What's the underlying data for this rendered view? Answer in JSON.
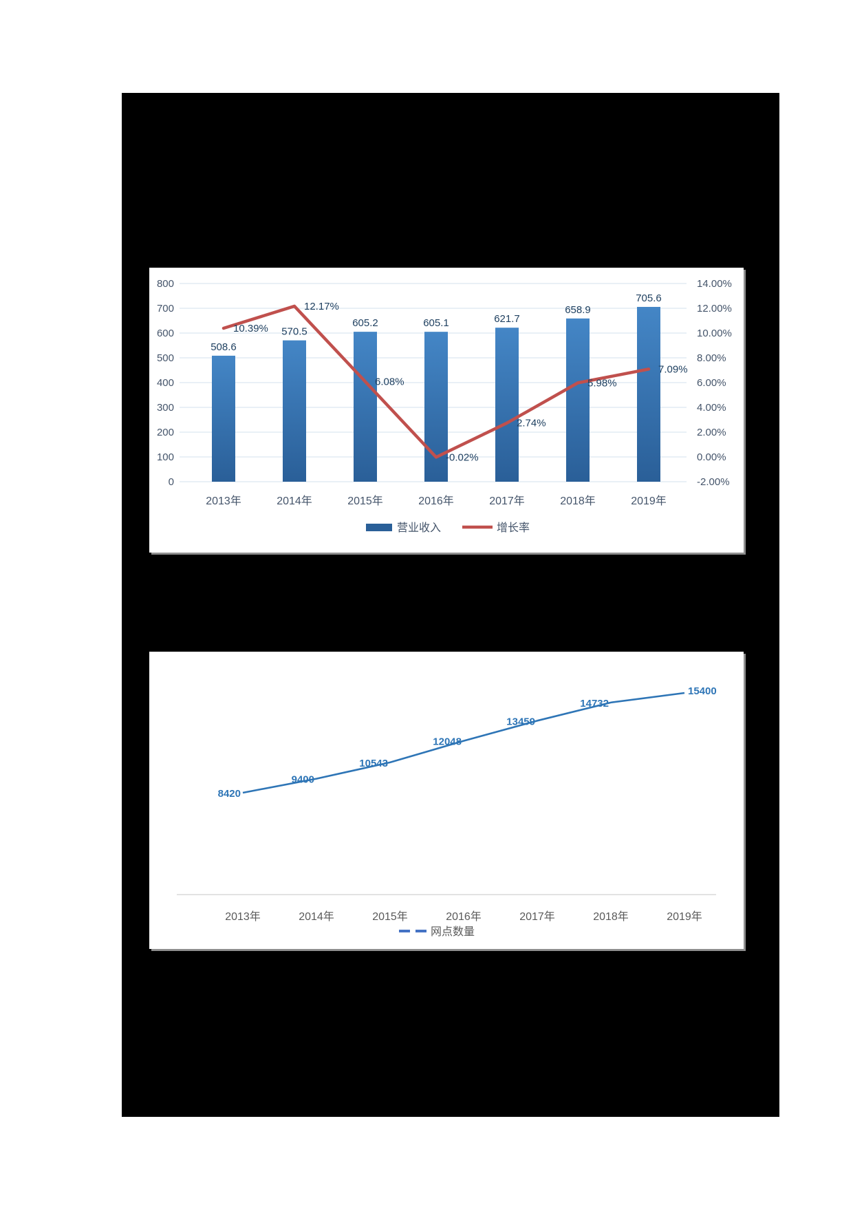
{
  "page": {
    "background_color": "#ffffff",
    "canvas_color": "#000000"
  },
  "chart_data": [
    {
      "type": "bar",
      "title": "",
      "categories": [
        "2013年",
        "2014年",
        "2015年",
        "2016年",
        "2017年",
        "2018年",
        "2019年"
      ],
      "series": [
        {
          "name": "营业收入",
          "type": "bar",
          "values": [
            508.6,
            570.5,
            605.2,
            605.1,
            621.7,
            658.9,
            705.6
          ],
          "labels": [
            "508.6",
            "570.5",
            "605.2",
            "605.1",
            "621.7",
            "658.9",
            "705.6"
          ],
          "color": "#3474b6"
        },
        {
          "name": "增长率",
          "type": "line",
          "values": [
            10.39,
            12.17,
            6.08,
            -0.02,
            2.74,
            5.98,
            7.09
          ],
          "labels": [
            "10.39%",
            "12.17%",
            "6.08%",
            "-0.02%",
            "2.74%",
            "5.98%",
            "7.09%"
          ],
          "color": "#c0504d"
        }
      ],
      "left_axis": {
        "min": 0,
        "max": 800,
        "step": 100,
        "ticks": [
          "800",
          "700",
          "600",
          "500",
          "400",
          "300",
          "200",
          "100",
          "0"
        ]
      },
      "right_axis": {
        "min": -2,
        "max": 14,
        "step": 2,
        "ticks": [
          "14.00%",
          "12.00%",
          "10.00%",
          "8.00%",
          "6.00%",
          "4.00%",
          "2.00%",
          "0.00%",
          "-2.00%"
        ]
      },
      "grid": true,
      "legend": [
        "营业收入",
        "增长率"
      ],
      "legend_position": "bottom",
      "colors": {
        "grid": "#dce6f1",
        "axis_label": "#44546a",
        "value_label": "#1f4060",
        "bar_top": "#4486c6",
        "bar_bottom": "#2a5f98",
        "line": "#c0504d"
      }
    },
    {
      "type": "line",
      "title": "",
      "categories": [
        "2013年",
        "2014年",
        "2015年",
        "2016年",
        "2017年",
        "2018年",
        "2019年"
      ],
      "series": [
        {
          "name": "网点数量",
          "type": "line",
          "values": [
            8420,
            9400,
            10543,
            12048,
            13459,
            14732,
            15400
          ],
          "labels": [
            "8420",
            "9400",
            "10543",
            "12048",
            "13459",
            "14732",
            "15400"
          ],
          "color": "#2e75b6"
        }
      ],
      "ylim": [
        8000,
        16000
      ],
      "grid": false,
      "legend": [
        "网点数量"
      ],
      "legend_position": "bottom",
      "colors": {
        "line": "#2e75b6",
        "value_label": "#2e75b6",
        "axis_line": "#d9d9d9",
        "x_label": "#595959",
        "legend_dash": "#4472c4",
        "legend_text": "#595959"
      }
    }
  ]
}
